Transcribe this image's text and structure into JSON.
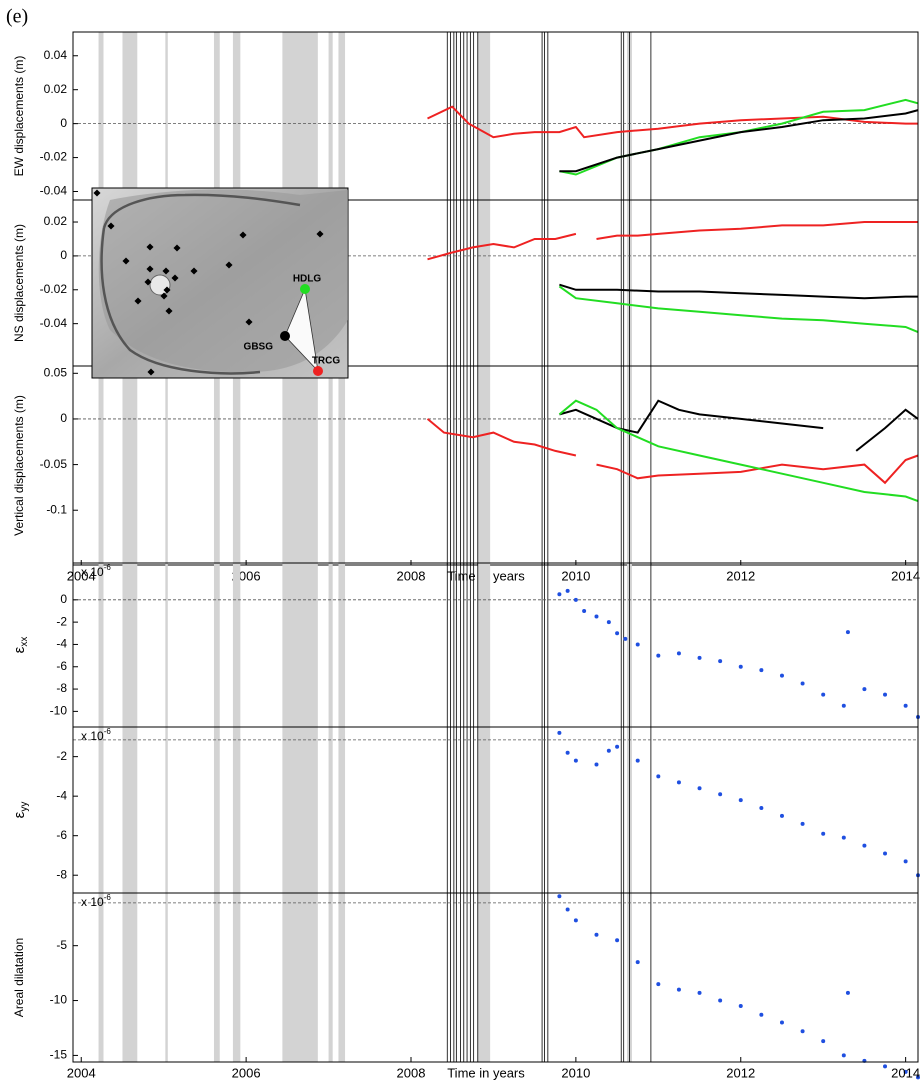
{
  "figure": {
    "label": "(e)",
    "shaded_periods": [
      [
        2004.21,
        2004.27
      ],
      [
        2004.5,
        2004.68
      ],
      [
        2005.02,
        2005.05
      ],
      [
        2005.61,
        2005.68
      ],
      [
        2005.84,
        2005.93
      ],
      [
        2006.44,
        2006.87
      ],
      [
        2007.0,
        2007.05
      ],
      [
        2007.12,
        2007.2
      ],
      [
        2008.81,
        2008.96
      ],
      [
        2010.62,
        2010.68
      ]
    ],
    "event_lines": [
      2008.44,
      2008.48,
      2008.52,
      2008.55,
      2008.6,
      2008.64,
      2008.68,
      2008.72,
      2008.76,
      2008.81,
      2009.59,
      2009.62,
      2009.66,
      2010.55,
      2010.58,
      2010.65,
      2010.91
    ],
    "inset": {
      "stations": [
        {
          "name": "HDLG",
          "color": "#22dd22"
        },
        {
          "name": "GBSG",
          "color": "#000000"
        },
        {
          "name": "TRCG",
          "color": "#ee2222"
        }
      ]
    }
  },
  "chart_data": [
    {
      "type": "line",
      "ylabel": "EW displacements (m)",
      "xlim": [
        2003.9,
        2014.15
      ],
      "ylim": [
        -0.045,
        0.054
      ],
      "yticks": [
        -0.04,
        -0.02,
        0,
        0.02,
        0.04
      ],
      "zero_line": 0,
      "series": [
        {
          "color": "#ee2222",
          "x": [
            2008.2,
            2008.5,
            2008.7,
            2009.0,
            2009.25,
            2009.5,
            2009.8,
            2010.0,
            2010.1,
            2010.5,
            2011.0,
            2011.5,
            2012.0,
            2012.5,
            2013.0,
            2013.5,
            2014.0,
            2014.15
          ],
          "values": [
            0.003,
            0.01,
            0,
            -0.008,
            -0.006,
            -0.005,
            -0.005,
            -0.002,
            -0.008,
            -0.005,
            -0.003,
            0,
            0.002,
            0.003,
            0.004,
            0.001,
            0,
            0
          ]
        },
        {
          "color": "#22dd22",
          "x": [
            2009.8,
            2010.0,
            2010.5,
            2011.0,
            2011.5,
            2012.0,
            2012.5,
            2013.0,
            2013.5,
            2014.0,
            2014.15
          ],
          "values": [
            -0.028,
            -0.03,
            -0.02,
            -0.015,
            -0.008,
            -0.005,
            0,
            0.007,
            0.008,
            0.014,
            0.012
          ]
        },
        {
          "color": "#000000",
          "x": [
            2009.8,
            2010.0,
            2010.5,
            2011.0,
            2011.5,
            2012.0,
            2012.5,
            2013.0,
            2013.5,
            2014.0,
            2014.15
          ],
          "values": [
            -0.028,
            -0.028,
            -0.02,
            -0.015,
            -0.01,
            -0.005,
            -0.002,
            0.002,
            0.003,
            0.006,
            0.008
          ]
        }
      ]
    },
    {
      "type": "line",
      "ylabel": "NS displacements (m)",
      "xlim": [
        2003.9,
        2014.15
      ],
      "ylim": [
        -0.065,
        0.033
      ],
      "yticks": [
        -0.04,
        -0.02,
        0,
        0.02
      ],
      "zero_line": 0,
      "series": [
        {
          "color": "#ee2222",
          "x": [
            2008.2,
            2008.5,
            2008.75,
            2009.0,
            2009.25,
            2009.5,
            2009.75,
            2010.0,
            2010.1,
            2010.25,
            2010.5,
            2010.75,
            2011.0,
            2011.5,
            2012.0,
            2012.5,
            2013.0,
            2013.5,
            2014.0,
            2014.15
          ],
          "values": [
            -0.002,
            0.002,
            0.005,
            0.007,
            0.005,
            0.01,
            0.01,
            0.013,
            null,
            0.01,
            0.012,
            0.012,
            0.013,
            0.015,
            0.016,
            0.018,
            0.018,
            0.02,
            0.02,
            0.02
          ]
        },
        {
          "color": "#000000",
          "x": [
            2009.8,
            2010.0,
            2010.5,
            2011.0,
            2011.5,
            2012.0,
            2012.5,
            2013.0,
            2013.5,
            2014.0,
            2014.15
          ],
          "values": [
            -0.017,
            -0.02,
            -0.02,
            -0.021,
            -0.021,
            -0.022,
            -0.023,
            -0.024,
            -0.025,
            -0.024,
            -0.024
          ]
        },
        {
          "color": "#22dd22",
          "x": [
            2009.8,
            2010.0,
            2010.5,
            2011.0,
            2011.5,
            2012.0,
            2012.5,
            2013.0,
            2013.5,
            2014.0,
            2014.15
          ],
          "values": [
            -0.018,
            -0.025,
            -0.028,
            -0.031,
            -0.033,
            -0.035,
            -0.037,
            -0.038,
            -0.04,
            -0.042,
            -0.045
          ]
        }
      ]
    },
    {
      "type": "line",
      "ylabel": "Vertical displacements (m)",
      "xlabel": "Time in years",
      "xlim": [
        2003.9,
        2014.15
      ],
      "ylim": [
        -0.16,
        0.058
      ],
      "yticks": [
        -0.1,
        -0.05,
        0,
        0.05
      ],
      "xticks": [
        2004,
        2006,
        2008,
        2010,
        2012,
        2014
      ],
      "zero_line": 0,
      "series": [
        {
          "color": "#ee2222",
          "x": [
            2008.2,
            2008.4,
            2008.75,
            2009.0,
            2009.25,
            2009.5,
            2009.75,
            2010.0,
            2010.1,
            2010.25,
            2010.5,
            2010.75,
            2011.0,
            2011.5,
            2012.0,
            2012.5,
            2013.0,
            2013.5,
            2013.75,
            2014.0,
            2014.15
          ],
          "values": [
            0,
            -0.015,
            -0.02,
            -0.015,
            -0.025,
            -0.028,
            -0.035,
            -0.04,
            null,
            -0.05,
            -0.055,
            -0.065,
            -0.062,
            -0.06,
            -0.058,
            -0.05,
            -0.055,
            -0.05,
            -0.07,
            -0.045,
            -0.04
          ]
        },
        {
          "color": "#000000",
          "x": [
            2009.8,
            2010.0,
            2010.5,
            2010.75,
            2011.0,
            2011.25,
            2011.5,
            2012.0,
            2012.5,
            2013.0,
            2013.2,
            2013.4,
            2013.75,
            2014.0,
            2014.15
          ],
          "values": [
            0.005,
            0.01,
            -0.01,
            -0.015,
            0.02,
            0.01,
            0.005,
            0,
            -0.005,
            -0.01,
            null,
            -0.035,
            -0.01,
            0.01,
            0
          ]
        },
        {
          "color": "#22dd22",
          "x": [
            2009.8,
            2010.0,
            2010.25,
            2010.5,
            2010.75,
            2011.0,
            2011.5,
            2012.0,
            2012.5,
            2013.0,
            2013.5,
            2014.0,
            2014.15
          ],
          "values": [
            0.005,
            0.02,
            0.01,
            -0.01,
            -0.02,
            -0.03,
            -0.04,
            -0.05,
            -0.06,
            -0.07,
            -0.08,
            -0.085,
            -0.09
          ]
        }
      ]
    },
    {
      "type": "scatter",
      "ylabel": "ε",
      "ylabel_sub": "xx",
      "multiplier": "x 10",
      "multiplier_exp": "-6",
      "xlim": [
        2003.9,
        2014.15
      ],
      "ylim": [
        -11.4,
        3.3
      ],
      "yticks": [
        -10,
        -8,
        -6,
        -4,
        -2,
        0
      ],
      "zero_line": 0,
      "series": [
        {
          "color": "#1f4fe0",
          "x": [
            2009.8,
            2009.9,
            2010.0,
            2010.1,
            2010.25,
            2010.4,
            2010.5,
            2010.6,
            2010.75,
            2011.0,
            2011.25,
            2011.5,
            2011.75,
            2012.0,
            2012.25,
            2012.5,
            2012.75,
            2013.0,
            2013.25,
            2013.3,
            2013.5,
            2013.75,
            2014.0,
            2014.15
          ],
          "values": [
            0.5,
            0.8,
            0,
            -1,
            -1.5,
            -2,
            -3,
            -3.5,
            -4,
            -5,
            -4.8,
            -5.2,
            -5.5,
            -6,
            -6.3,
            -6.8,
            -7.5,
            -8.5,
            -9.5,
            -2.9,
            -8,
            -8.5,
            -9.5,
            -10.5
          ]
        }
      ]
    },
    {
      "type": "scatter",
      "ylabel": "ε",
      "ylabel_sub": "yy",
      "multiplier": "x 10",
      "multiplier_exp": "-6",
      "xlim": [
        2003.9,
        2014.15
      ],
      "ylim": [
        -8.9,
        -0.5
      ],
      "yticks": [
        -8,
        -6,
        -4,
        -2
      ],
      "zero_line": -1.15,
      "series": [
        {
          "color": "#1f4fe0",
          "x": [
            2009.8,
            2009.9,
            2010.0,
            2010.25,
            2010.4,
            2010.5,
            2010.75,
            2011.0,
            2011.25,
            2011.5,
            2011.75,
            2012.0,
            2012.25,
            2012.5,
            2012.75,
            2013.0,
            2013.25,
            2013.5,
            2013.75,
            2014.0,
            2014.15
          ],
          "values": [
            -0.8,
            -1.8,
            -2.2,
            -2.4,
            -1.7,
            -1.5,
            -2.2,
            -3,
            -3.3,
            -3.6,
            -3.9,
            -4.2,
            -4.6,
            -5,
            -5.4,
            -5.9,
            -6.1,
            -6.5,
            -6.9,
            -7.3,
            -8
          ]
        }
      ]
    },
    {
      "type": "scatter",
      "ylabel": "Areal dilatation",
      "multiplier": "x 10",
      "multiplier_exp": "-6",
      "xlabel": "Time in years",
      "xlim": [
        2003.9,
        2014.15
      ],
      "ylim": [
        -15.6,
        -0.2
      ],
      "yticks": [
        -15,
        -10,
        -5
      ],
      "xticks": [
        2004,
        2006,
        2008,
        2010,
        2012,
        2014
      ],
      "zero_line": -1.1,
      "series": [
        {
          "color": "#1f4fe0",
          "x": [
            2009.8,
            2009.9,
            2010.0,
            2010.25,
            2010.5,
            2010.75,
            2011.0,
            2011.25,
            2011.5,
            2011.75,
            2012.0,
            2012.25,
            2012.5,
            2012.75,
            2013.0,
            2013.25,
            2013.3,
            2013.5,
            2013.75,
            2014.0,
            2014.15
          ],
          "values": [
            -0.5,
            -1.7,
            -2.7,
            -4,
            -4.5,
            -6.5,
            -8.5,
            -9,
            -9.3,
            -10,
            -10.5,
            -11.3,
            -12,
            -12.8,
            -13.7,
            -15,
            -9.3,
            -15.5,
            -16,
            -16.5,
            -17
          ]
        }
      ]
    }
  ]
}
